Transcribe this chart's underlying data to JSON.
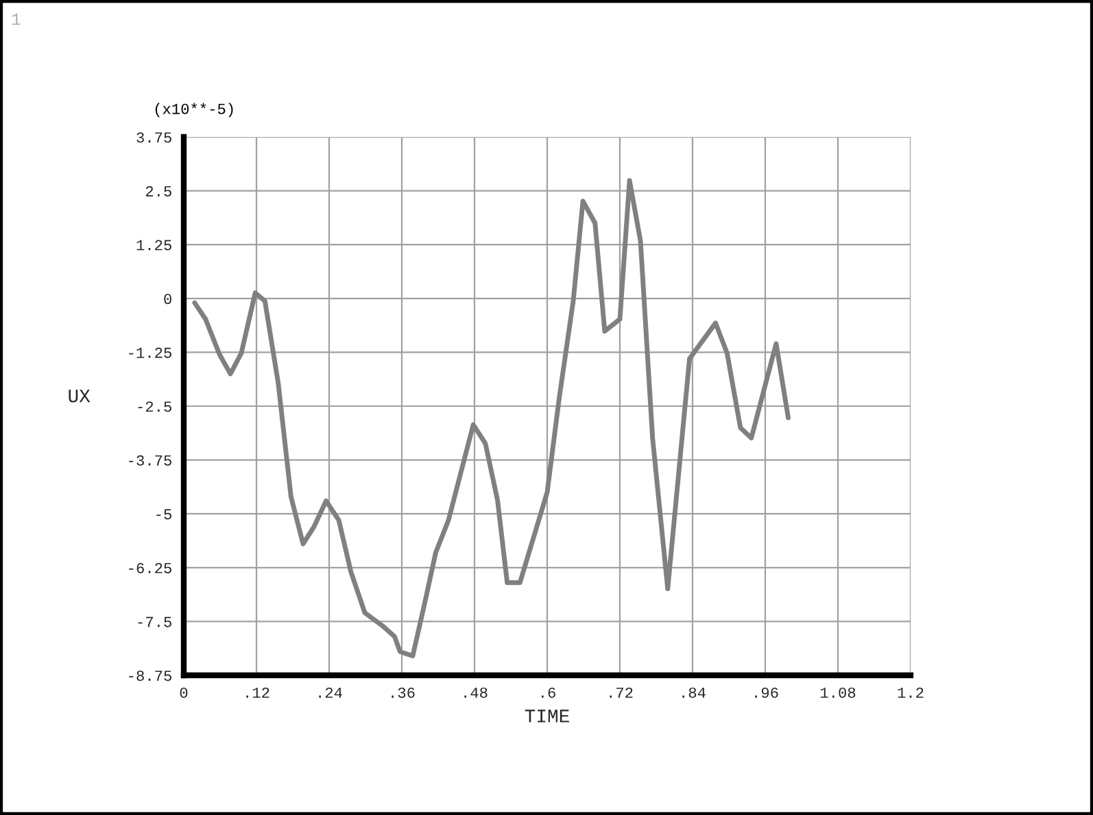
{
  "chart_data": {
    "type": "line",
    "xlabel": "TIME",
    "ylabel": "UX",
    "annotations": [
      "1",
      "(x10**-5)"
    ],
    "x": [
      0.018,
      0.036,
      0.059,
      0.077,
      0.095,
      0.118,
      0.134,
      0.156,
      0.177,
      0.197,
      0.215,
      0.235,
      0.256,
      0.276,
      0.299,
      0.328,
      0.348,
      0.357,
      0.378,
      0.398,
      0.416,
      0.437,
      0.478,
      0.498,
      0.518,
      0.534,
      0.555,
      0.6,
      0.62,
      0.643,
      0.659,
      0.679,
      0.695,
      0.72,
      0.736,
      0.754,
      0.774,
      0.799,
      0.835,
      0.878,
      0.897,
      0.919,
      0.937,
      0.978,
      0.998
    ],
    "series": [
      {
        "color": "#808080",
        "values": [
          -0.1,
          -0.48,
          -1.3,
          -1.75,
          -1.27,
          0.13,
          -0.06,
          -1.97,
          -4.6,
          -5.7,
          -5.3,
          -4.7,
          -5.15,
          -6.35,
          -7.3,
          -7.6,
          -7.85,
          -8.2,
          -8.3,
          -7.06,
          -5.9,
          -5.15,
          -2.93,
          -3.37,
          -4.68,
          -6.6,
          -6.6,
          -4.5,
          -2.3,
          -0.06,
          2.26,
          1.75,
          -0.76,
          -0.48,
          2.74,
          1.34,
          -3.24,
          -6.74,
          -1.4,
          -0.57,
          -1.27,
          -3.0,
          -3.24,
          -1.05,
          -2.77
        ]
      }
    ],
    "xlim": [
      0,
      1.2
    ],
    "xticks": [
      0,
      {
        "value": 0.12,
        "label": ".12"
      },
      {
        "value": 0.24,
        "label": ".24"
      },
      {
        "value": 0.36,
        "label": ".36"
      },
      {
        "value": 0.48,
        "label": ".48"
      },
      {
        "value": 0.6,
        "label": ".6"
      },
      {
        "value": 0.72,
        "label": ".72"
      },
      {
        "value": 0.84,
        "label": ".84"
      },
      {
        "value": 0.96,
        "label": ".96"
      },
      1.08,
      1.2
    ],
    "ylim": [
      -8.75,
      3.75
    ],
    "yticks": [
      3.75,
      2.5,
      1.25,
      0,
      -1.25,
      -2.5,
      -3.75,
      -5,
      -6.25,
      -7.5,
      -8.75
    ],
    "grid": true,
    "marker": "none",
    "line_style": "solid"
  }
}
